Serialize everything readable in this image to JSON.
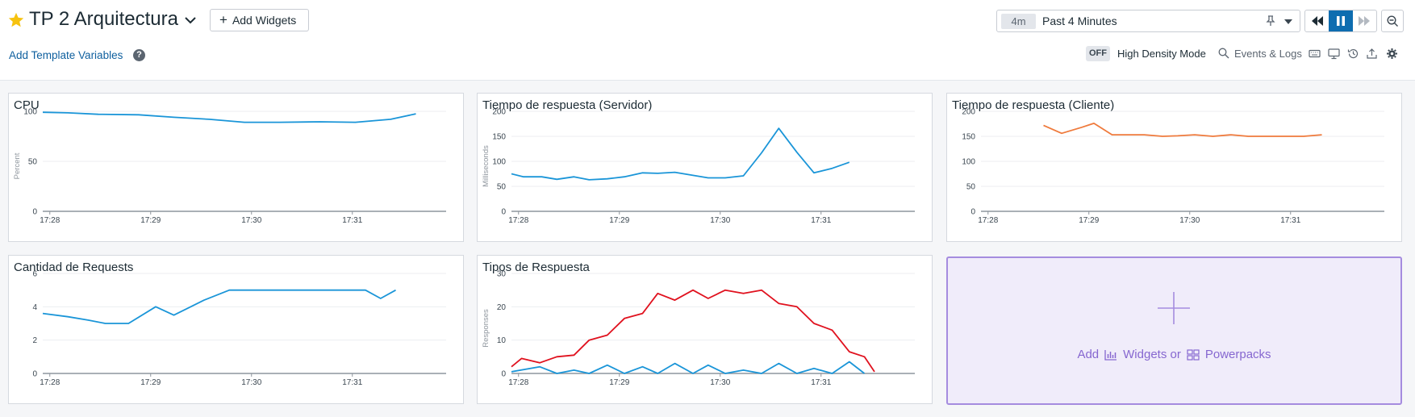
{
  "header": {
    "title": "TP 2 Arquitectura",
    "add_widgets_label": "Add Widgets",
    "template_vars_label": "Add Template Variables",
    "help_glyph": "?",
    "time_badge": "4m",
    "time_label": "Past 4 Minutes",
    "high_density_state": "OFF",
    "high_density_label": "High Density Mode",
    "events_logs_label": "Events & Logs",
    "tool_icons": [
      "keyboard-icon",
      "monitor-icon",
      "history-icon",
      "export-icon",
      "gear-icon"
    ]
  },
  "widgets": {
    "cpu": {
      "title": "CPU"
    },
    "srv": {
      "title": "Tiempo de respuesta (Servidor)"
    },
    "cli": {
      "title": "Tiempo de respuesta (Cliente)"
    },
    "req": {
      "title": "Cantidad de Requests"
    },
    "tipos": {
      "title": "Tipos de Respuesta"
    }
  },
  "placeholder": {
    "add_label": "Add",
    "widgets_label": "Widgets or",
    "powerpacks_label": "Powerpacks"
  },
  "colors": {
    "blue": "#1a95d8",
    "orange": "#ef7a3c",
    "red": "#e0111e",
    "accent": "#8667d0"
  },
  "chart_data": [
    {
      "id": "cpu",
      "type": "line",
      "title": "CPU",
      "ylabel": "Percent",
      "ylim": [
        0,
        100
      ],
      "yticks": [
        0,
        50,
        100
      ],
      "xlim": [
        0,
        4.0
      ],
      "xticks": [
        0.07,
        1.07,
        2.07,
        3.07
      ],
      "xtick_labels": [
        "17:28",
        "17:29",
        "17:30",
        "17:31"
      ],
      "series": [
        {
          "color": "#1a95d8",
          "x": [
            0,
            0.25,
            0.55,
            0.95,
            1.3,
            1.65,
            2.0,
            2.35,
            2.75,
            3.1,
            3.45,
            3.7
          ],
          "y": [
            99,
            98.5,
            97,
            96.5,
            94,
            92,
            89,
            89,
            89.5,
            89,
            92,
            97.5
          ]
        }
      ]
    },
    {
      "id": "srv",
      "type": "line",
      "title": "Tiempo de respuesta (Servidor)",
      "ylabel": "Milliseconds",
      "ylim": [
        0,
        200
      ],
      "yticks": [
        0,
        50,
        100,
        150,
        200
      ],
      "xlim": [
        0,
        4.0
      ],
      "xticks": [
        0.07,
        1.07,
        2.07,
        3.07
      ],
      "xtick_labels": [
        "17:28",
        "17:29",
        "17:30",
        "17:31"
      ],
      "series": [
        {
          "color": "#1a95d8",
          "x": [
            0,
            0.12,
            0.3,
            0.45,
            0.62,
            0.77,
            0.95,
            1.12,
            1.3,
            1.45,
            1.62,
            1.8,
            1.95,
            2.12,
            2.3,
            2.48,
            2.65,
            2.83,
            3.0,
            3.18,
            3.35
          ],
          "y": [
            75,
            69,
            69,
            64,
            69,
            63,
            65,
            69,
            77,
            76,
            78,
            72,
            67,
            67,
            71,
            117,
            166,
            118,
            77,
            86,
            98
          ]
        }
      ]
    },
    {
      "id": "cli",
      "type": "line",
      "title": "Tiempo de respuesta (Cliente)",
      "ylim": [
        0,
        200
      ],
      "yticks": [
        0,
        50,
        100,
        150,
        200
      ],
      "xlim": [
        0,
        4.0
      ],
      "xticks": [
        0.07,
        1.07,
        2.07,
        3.07
      ],
      "xtick_labels": [
        "17:28",
        "17:29",
        "17:30",
        "17:31"
      ],
      "series": [
        {
          "color": "#ef7a3c",
          "x": [
            0.62,
            0.8,
            1.0,
            1.12,
            1.3,
            1.45,
            1.62,
            1.8,
            1.95,
            2.12,
            2.3,
            2.48,
            2.65,
            2.83,
            3.0,
            3.2,
            3.38
          ],
          "y": [
            172,
            156,
            168,
            176,
            153,
            153,
            153,
            150,
            151,
            153,
            150,
            153,
            150,
            150,
            150,
            150,
            153
          ]
        }
      ]
    },
    {
      "id": "req",
      "type": "line",
      "title": "Cantidad de Requests",
      "ylim": [
        0,
        6
      ],
      "yticks": [
        0,
        2,
        4,
        6
      ],
      "xlim": [
        0,
        4.0
      ],
      "xticks": [
        0.07,
        1.07,
        2.07,
        3.07
      ],
      "xtick_labels": [
        "17:28",
        "17:29",
        "17:30",
        "17:31"
      ],
      "series": [
        {
          "color": "#1a95d8",
          "x": [
            0,
            0.25,
            0.45,
            0.62,
            0.85,
            1.12,
            1.3,
            1.6,
            1.85,
            2.1,
            2.4,
            2.7,
            3.0,
            3.2,
            3.35,
            3.5
          ],
          "y": [
            3.6,
            3.4,
            3.2,
            3.0,
            3.0,
            4.0,
            3.5,
            4.4,
            5.0,
            5.0,
            5.0,
            5.0,
            5.0,
            5.0,
            4.5,
            5.0
          ]
        }
      ]
    },
    {
      "id": "tipos",
      "type": "line",
      "title": "Tipos de Respuesta",
      "ylabel": "Responses",
      "ylim": [
        0,
        30
      ],
      "yticks": [
        0,
        10,
        20,
        30
      ],
      "xlim": [
        0,
        4.0
      ],
      "xticks": [
        0.07,
        1.07,
        2.07,
        3.07
      ],
      "xtick_labels": [
        "17:28",
        "17:29",
        "17:30",
        "17:31"
      ],
      "series": [
        {
          "color": "#e0111e",
          "x": [
            0,
            0.1,
            0.28,
            0.45,
            0.62,
            0.77,
            0.95,
            1.12,
            1.3,
            1.45,
            1.62,
            1.8,
            1.95,
            2.12,
            2.3,
            2.48,
            2.65,
            2.83,
            3.0,
            3.18,
            3.35,
            3.5,
            3.6
          ],
          "y": [
            2,
            4.5,
            3.2,
            5,
            5.5,
            10,
            11.5,
            16.5,
            18,
            24,
            22,
            25,
            22.5,
            25,
            24,
            25,
            21,
            20,
            15,
            13,
            6.5,
            5,
            0.5
          ]
        },
        {
          "color": "#1a95d8",
          "x": [
            0,
            0.28,
            0.45,
            0.62,
            0.77,
            0.95,
            1.12,
            1.3,
            1.45,
            1.62,
            1.8,
            1.95,
            2.12,
            2.3,
            2.48,
            2.65,
            2.83,
            3.0,
            3.18,
            3.35,
            3.5
          ],
          "y": [
            0.5,
            2,
            0,
            1,
            0,
            2.5,
            0,
            2,
            0,
            3,
            0,
            2.5,
            0,
            1,
            0,
            3,
            0,
            1.5,
            0,
            3.5,
            0
          ]
        }
      ]
    }
  ]
}
